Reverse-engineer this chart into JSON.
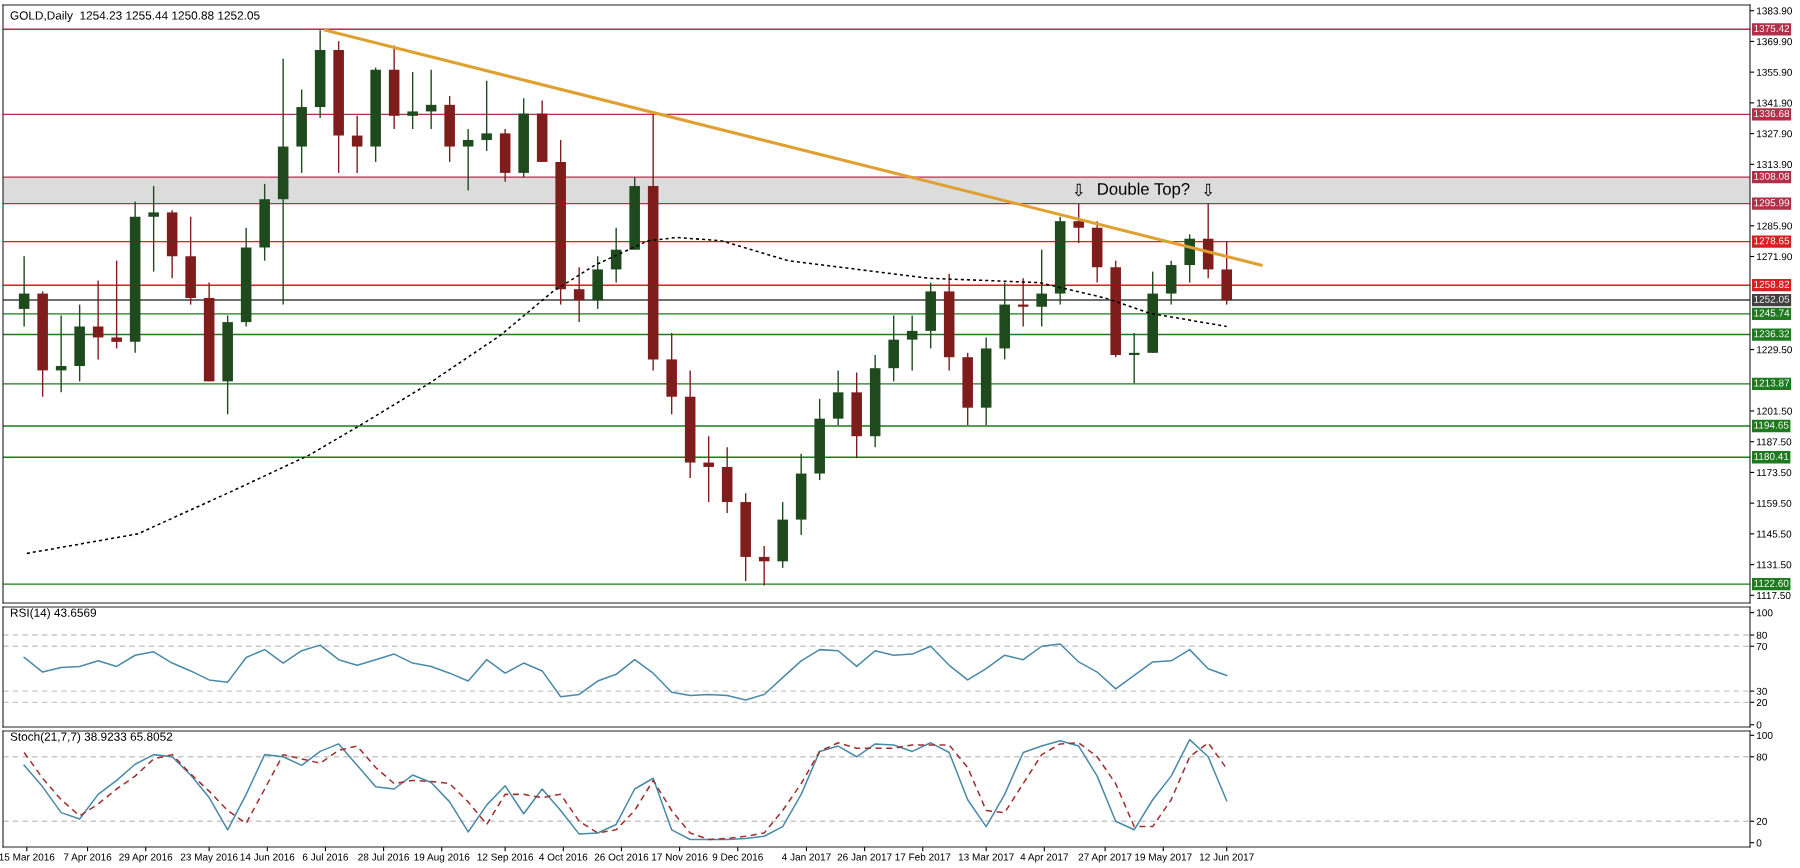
{
  "chart_data": [
    {
      "type": "candlestick",
      "title": "GOLD,Daily  1254.23 1255.44 1250.88 1252.05",
      "x": [
        "2016-03-14",
        "2016-03-21",
        "2016-03-28",
        "2016-04-04",
        "2016-04-11",
        "2016-04-18",
        "2016-04-25",
        "2016-05-02",
        "2016-05-09",
        "2016-05-16",
        "2016-05-23",
        "2016-05-30",
        "2016-06-06",
        "2016-06-13",
        "2016-06-20",
        "2016-06-27",
        "2016-07-04",
        "2016-07-11",
        "2016-07-18",
        "2016-07-25",
        "2016-08-01",
        "2016-08-08",
        "2016-08-15",
        "2016-08-22",
        "2016-08-29",
        "2016-09-05",
        "2016-09-12",
        "2016-09-19",
        "2016-09-26",
        "2016-10-03",
        "2016-10-10",
        "2016-10-17",
        "2016-10-24",
        "2016-10-31",
        "2016-11-07",
        "2016-11-14",
        "2016-11-21",
        "2016-11-28",
        "2016-12-05",
        "2016-12-12",
        "2016-12-19",
        "2016-12-26",
        "2017-01-02",
        "2017-01-09",
        "2017-01-16",
        "2017-01-23",
        "2017-01-30",
        "2017-02-06",
        "2017-02-13",
        "2017-02-20",
        "2017-02-27",
        "2017-03-06",
        "2017-03-13",
        "2017-03-20",
        "2017-03-27",
        "2017-04-03",
        "2017-04-10",
        "2017-04-17",
        "2017-04-24",
        "2017-05-01",
        "2017-05-08",
        "2017-05-15",
        "2017-05-22",
        "2017-05-29",
        "2017-06-05",
        "2017-06-12"
      ],
      "ohlc": [
        [
          1248,
          1272,
          1240,
          1255
        ],
        [
          1255,
          1256,
          1208,
          1220
        ],
        [
          1220,
          1245,
          1210,
          1222
        ],
        [
          1222,
          1250,
          1215,
          1240
        ],
        [
          1240,
          1261,
          1225,
          1235
        ],
        [
          1235,
          1270,
          1230,
          1233
        ],
        [
          1233,
          1297,
          1228,
          1290
        ],
        [
          1290,
          1304,
          1265,
          1292
        ],
        [
          1292,
          1293,
          1262,
          1272
        ],
        [
          1272,
          1290,
          1250,
          1253
        ],
        [
          1253,
          1260,
          1215,
          1215
        ],
        [
          1215,
          1245,
          1200,
          1242
        ],
        [
          1242,
          1285,
          1240,
          1276
        ],
        [
          1276,
          1305,
          1270,
          1298
        ],
        [
          1298,
          1362,
          1250,
          1322
        ],
        [
          1322,
          1348,
          1310,
          1340
        ],
        [
          1340,
          1375,
          1335,
          1366
        ],
        [
          1366,
          1370,
          1310,
          1327
        ],
        [
          1327,
          1336,
          1310,
          1322
        ],
        [
          1322,
          1358,
          1315,
          1357
        ],
        [
          1357,
          1368,
          1330,
          1336
        ],
        [
          1336,
          1356,
          1330,
          1338
        ],
        [
          1338,
          1357,
          1330,
          1341
        ],
        [
          1341,
          1345,
          1315,
          1322
        ],
        [
          1322,
          1330,
          1302,
          1325
        ],
        [
          1325,
          1352,
          1320,
          1328
        ],
        [
          1328,
          1330,
          1306,
          1310
        ],
        [
          1310,
          1344,
          1308,
          1337
        ],
        [
          1337,
          1343,
          1315,
          1315
        ],
        [
          1315,
          1325,
          1250,
          1257
        ],
        [
          1257,
          1267,
          1242,
          1252
        ],
        [
          1252,
          1272,
          1248,
          1266
        ],
        [
          1266,
          1285,
          1260,
          1275
        ],
        [
          1275,
          1308,
          1275,
          1304
        ],
        [
          1304,
          1337,
          1220,
          1225
        ],
        [
          1225,
          1237,
          1200,
          1208
        ],
        [
          1208,
          1220,
          1171,
          1178
        ],
        [
          1178,
          1190,
          1160,
          1176
        ],
        [
          1176,
          1185,
          1155,
          1160
        ],
        [
          1160,
          1164,
          1124,
          1135
        ],
        [
          1135,
          1140,
          1122,
          1133
        ],
        [
          1133,
          1160,
          1130,
          1152
        ],
        [
          1152,
          1182,
          1145,
          1173
        ],
        [
          1173,
          1207,
          1170,
          1198
        ],
        [
          1198,
          1220,
          1195,
          1210
        ],
        [
          1210,
          1219,
          1180,
          1190
        ],
        [
          1190,
          1227,
          1185,
          1221
        ],
        [
          1221,
          1245,
          1215,
          1234
        ],
        [
          1234,
          1245,
          1220,
          1238
        ],
        [
          1238,
          1260,
          1230,
          1256
        ],
        [
          1256,
          1264,
          1220,
          1226
        ],
        [
          1226,
          1228,
          1195,
          1203
        ],
        [
          1203,
          1235,
          1195,
          1230
        ],
        [
          1230,
          1260,
          1225,
          1250
        ],
        [
          1250,
          1262,
          1240,
          1249
        ],
        [
          1249,
          1275,
          1240,
          1255
        ],
        [
          1255,
          1290,
          1250,
          1288
        ],
        [
          1288,
          1296,
          1278,
          1285
        ],
        [
          1285,
          1288,
          1260,
          1267
        ],
        [
          1267,
          1270,
          1226,
          1227
        ],
        [
          1227,
          1237,
          1214,
          1228
        ],
        [
          1228,
          1265,
          1228,
          1255
        ],
        [
          1255,
          1270,
          1250,
          1268
        ],
        [
          1268,
          1282,
          1260,
          1280
        ],
        [
          1280,
          1296,
          1262,
          1266
        ],
        [
          1266,
          1279,
          1250,
          1252
        ]
      ],
      "colors": [
        "#1e4a1e",
        "#7f1d1d",
        "#1e4a1e",
        "#1e4a1e",
        "#7f1d1d",
        "#7f1d1d",
        "#1e4a1e",
        "#1e4a1e",
        "#7f1d1d",
        "#7f1d1d",
        "#7f1d1d",
        "#1e4a1e",
        "#1e4a1e",
        "#1e4a1e",
        "#1e4a1e",
        "#1e4a1e",
        "#1e4a1e",
        "#7f1d1d",
        "#7f1d1d",
        "#1e4a1e",
        "#7f1d1d",
        "#1e4a1e",
        "#1e4a1e",
        "#7f1d1d",
        "#1e4a1e",
        "#1e4a1e",
        "#7f1d1d",
        "#1e4a1e",
        "#7f1d1d",
        "#7f1d1d",
        "#7f1d1d",
        "#1e4a1e",
        "#1e4a1e",
        "#1e4a1e",
        "#7f1d1d",
        "#7f1d1d",
        "#7f1d1d",
        "#7f1d1d",
        "#7f1d1d",
        "#7f1d1d",
        "#7f1d1d",
        "#1e4a1e",
        "#1e4a1e",
        "#1e4a1e",
        "#1e4a1e",
        "#7f1d1d",
        "#1e4a1e",
        "#1e4a1e",
        "#1e4a1e",
        "#1e4a1e",
        "#7f1d1d",
        "#7f1d1d",
        "#1e4a1e",
        "#1e4a1e",
        "#7f1d1d",
        "#1e4a1e",
        "#1e4a1e",
        "#7f1d1d",
        "#7f1d1d",
        "#7f1d1d",
        "#1e4a1e",
        "#1e4a1e",
        "#1e4a1e",
        "#1e4a1e",
        "#7f1d1d",
        "#7f1d1d"
      ],
      "series": [
        {
          "type": "line",
          "color": "#000000",
          "line_style": "dotted",
          "x": [
            "2016-03-15",
            "2016-04-26",
            "2016-06-02",
            "2016-06-30",
            "2016-07-20",
            "2016-08-14",
            "2016-09-10",
            "2016-09-30",
            "2016-10-16",
            "2016-11-05",
            "2016-11-16",
            "2016-12-03",
            "2016-12-28",
            "2017-02-19",
            "2017-04-02",
            "2017-04-27",
            "2017-05-14",
            "2017-06-12"
          ],
          "values": [
            1136.6,
            1145.5,
            1165.7,
            1181.5,
            1195.6,
            1213.9,
            1235.8,
            1255.9,
            1268,
            1279,
            1280.6,
            1279,
            1270,
            1262,
            1260,
            1253,
            1246,
            1240
          ]
        },
        {
          "type": "line",
          "color": "#e0a030",
          "line_style": "solid",
          "x": [
            "2016-07-06",
            "2017-06-25"
          ],
          "values": [
            1375,
            1268
          ]
        }
      ],
      "xlim": [
        "2016-03-06",
        "2017-12-27"
      ],
      "ylim": [
        1114,
        1386.5
      ],
      "yticks": [
        {
          "value": 1383.9,
          "label": "1383.90"
        },
        {
          "value": 1369.9,
          "label": "1369.90"
        },
        {
          "value": 1355.9,
          "label": "1355.90"
        },
        {
          "value": 1341.9,
          "label": "1341.90"
        },
        {
          "value": 1327.9,
          "label": "1327.90"
        },
        {
          "value": 1313.9,
          "label": "1313.90"
        },
        {
          "value": 1285.9,
          "label": "1285.90"
        },
        {
          "value": 1271.9,
          "label": "1271.90"
        },
        {
          "value": 1229.5,
          "label": "1229.50"
        },
        {
          "value": 1201.5,
          "label": "1201.50"
        },
        {
          "value": 1187.5,
          "label": "1187.50"
        },
        {
          "value": 1173.5,
          "label": "1173.50"
        },
        {
          "value": 1159.5,
          "label": "1159.50"
        },
        {
          "value": 1145.5,
          "label": "1145.50"
        },
        {
          "value": 1131.5,
          "label": "1131.50"
        },
        {
          "value": 1117.5,
          "label": "1117.50"
        }
      ],
      "tick_labels": "y",
      "ref_lines": [
        {
          "axis": "y",
          "value": 1375.42,
          "label": "1375.42",
          "color": "#b0304a"
        },
        {
          "axis": "y",
          "value": 1336.68,
          "label": "1336.68",
          "color": "#b0304a"
        },
        {
          "axis": "y",
          "value": 1308.08,
          "label": "1308.08",
          "color": "#b0304a"
        },
        {
          "axis": "y",
          "value": 1295.99,
          "label": "1295.99",
          "color": "#b0304a"
        },
        {
          "axis": "y",
          "value": 1278.65,
          "label": "1278.65",
          "color": "#d42020"
        },
        {
          "axis": "y",
          "value": 1258.82,
          "label": "1258.82",
          "color": "#d42020"
        },
        {
          "axis": "y",
          "value": 1252.05,
          "label": "1252.05",
          "color": "#404040"
        },
        {
          "axis": "y",
          "value": 1245.74,
          "label": "1245.74",
          "color": "#1e7a1e"
        },
        {
          "axis": "y",
          "value": 1236.32,
          "label": "1236.32",
          "color": "#1e7a1e"
        },
        {
          "axis": "y",
          "value": 1213.87,
          "label": "1213.87",
          "color": "#1e7a1e"
        },
        {
          "axis": "y",
          "value": 1194.65,
          "label": "1194.65",
          "color": "#1e7a1e"
        },
        {
          "axis": "y",
          "value": 1180.41,
          "label": "1180.41",
          "color": "#1e7a1e"
        },
        {
          "axis": "y",
          "value": 1122.6,
          "label": "1122.60",
          "color": "#1e7a1e"
        }
      ],
      "bands": [
        {
          "axis": "y",
          "from": 1295.99,
          "to": 1308.08,
          "label": "Double Top?",
          "color": "#dcdcdc"
        }
      ],
      "annotations": [
        {
          "text": "⇩",
          "x": "2017-04-17",
          "y": 1296
        },
        {
          "text": "⇩",
          "x": "2017-06-05",
          "y": 1296
        }
      ]
    },
    {
      "type": "line",
      "title": "RSI(14) 43.6569",
      "x": [
        "2016-03-14",
        "2016-03-21",
        "2016-03-28",
        "2016-04-04",
        "2016-04-11",
        "2016-04-18",
        "2016-04-25",
        "2016-05-02",
        "2016-05-09",
        "2016-05-16",
        "2016-05-23",
        "2016-05-30",
        "2016-06-06",
        "2016-06-13",
        "2016-06-20",
        "2016-06-27",
        "2016-07-04",
        "2016-07-11",
        "2016-07-18",
        "2016-07-25",
        "2016-08-01",
        "2016-08-08",
        "2016-08-15",
        "2016-08-22",
        "2016-08-29",
        "2016-09-05",
        "2016-09-12",
        "2016-09-19",
        "2016-09-26",
        "2016-10-03",
        "2016-10-10",
        "2016-10-17",
        "2016-10-24",
        "2016-10-31",
        "2016-11-07",
        "2016-11-14",
        "2016-11-21",
        "2016-11-28",
        "2016-12-05",
        "2016-12-12",
        "2016-12-19",
        "2016-12-26",
        "2017-01-02",
        "2017-01-09",
        "2017-01-16",
        "2017-01-23",
        "2017-01-30",
        "2017-02-06",
        "2017-02-13",
        "2017-02-20",
        "2017-02-27",
        "2017-03-06",
        "2017-03-13",
        "2017-03-20",
        "2017-03-27",
        "2017-04-03",
        "2017-04-10",
        "2017-04-17",
        "2017-04-24",
        "2017-05-01",
        "2017-05-08",
        "2017-05-15",
        "2017-05-22",
        "2017-05-29",
        "2017-06-05",
        "2017-06-12"
      ],
      "series": [
        {
          "color": "#4a8aa8",
          "line_style": "solid",
          "values": [
            60,
            47,
            51,
            52,
            57,
            52,
            62,
            65,
            55,
            48,
            40,
            38,
            60,
            67,
            55,
            66,
            71,
            58,
            53,
            58,
            63,
            55,
            52,
            46,
            39,
            58,
            46,
            55,
            48,
            25,
            27,
            39,
            45,
            58,
            46,
            29,
            26,
            27,
            26,
            22,
            27,
            42,
            57,
            67,
            66,
            52,
            66,
            62,
            63,
            70,
            53,
            40,
            50,
            62,
            58,
            70,
            72,
            56,
            47,
            32,
            44,
            56,
            57,
            67,
            50,
            44
          ]
        }
      ],
      "xlim": [
        "2016-03-06",
        "2017-12-27"
      ],
      "ylim": [
        -2,
        105
      ],
      "yticks": [
        0,
        20,
        30,
        70,
        80,
        100
      ],
      "tick_labels": "y",
      "ref_lines": [
        {
          "axis": "y",
          "value": 80,
          "label": null,
          "color": "#c8c8c8",
          "line_style": "dashed"
        },
        {
          "axis": "y",
          "value": 70,
          "label": null,
          "color": "#c8c8c8",
          "line_style": "dashed"
        },
        {
          "axis": "y",
          "value": 30,
          "label": null,
          "color": "#c8c8c8",
          "line_style": "dashed"
        },
        {
          "axis": "y",
          "value": 20,
          "label": null,
          "color": "#c8c8c8",
          "line_style": "dashed"
        }
      ]
    },
    {
      "type": "line",
      "title": "Stoch(21,7,7) 38.9233 65.8052",
      "x": [
        "2016-03-14",
        "2016-03-21",
        "2016-03-28",
        "2016-04-04",
        "2016-04-11",
        "2016-04-18",
        "2016-04-25",
        "2016-05-02",
        "2016-05-09",
        "2016-05-16",
        "2016-05-23",
        "2016-05-30",
        "2016-06-06",
        "2016-06-13",
        "2016-06-20",
        "2016-06-27",
        "2016-07-04",
        "2016-07-11",
        "2016-07-18",
        "2016-07-25",
        "2016-08-01",
        "2016-08-08",
        "2016-08-15",
        "2016-08-22",
        "2016-08-29",
        "2016-09-05",
        "2016-09-12",
        "2016-09-19",
        "2016-09-26",
        "2016-10-03",
        "2016-10-10",
        "2016-10-17",
        "2016-10-24",
        "2016-10-31",
        "2016-11-07",
        "2016-11-14",
        "2016-11-21",
        "2016-11-28",
        "2016-12-05",
        "2016-12-12",
        "2016-12-19",
        "2016-12-26",
        "2017-01-02",
        "2017-01-09",
        "2017-01-16",
        "2017-01-23",
        "2017-01-30",
        "2017-02-06",
        "2017-02-13",
        "2017-02-20",
        "2017-02-27",
        "2017-03-06",
        "2017-03-13",
        "2017-03-20",
        "2017-03-27",
        "2017-04-03",
        "2017-04-10",
        "2017-04-17",
        "2017-04-24",
        "2017-05-01",
        "2017-05-08",
        "2017-05-15",
        "2017-05-22",
        "2017-05-29",
        "2017-06-05",
        "2017-06-12"
      ],
      "series": [
        {
          "color": "#4a8aa8",
          "line_style": "solid",
          "values": [
            72,
            52,
            28,
            22,
            45,
            58,
            73,
            82,
            80,
            63,
            42,
            12,
            45,
            82,
            80,
            72,
            85,
            92,
            72,
            52,
            50,
            63,
            56,
            38,
            10,
            35,
            53,
            27,
            50,
            30,
            8,
            9,
            17,
            50,
            60,
            12,
            3,
            3,
            3,
            4,
            6,
            15,
            45,
            85,
            90,
            80,
            92,
            91,
            85,
            93,
            84,
            40,
            15,
            45,
            84,
            90,
            95,
            90,
            62,
            20,
            12,
            40,
            62,
            96,
            80,
            39
          ]
        },
        {
          "color": "#a03030",
          "line_style": "dashed",
          "values": [
            84,
            60,
            40,
            25,
            36,
            50,
            62,
            78,
            82,
            64,
            48,
            30,
            18,
            50,
            82,
            78,
            74,
            86,
            90,
            70,
            55,
            58,
            57,
            55,
            38,
            17,
            45,
            45,
            42,
            45,
            20,
            9,
            12,
            30,
            58,
            30,
            9,
            3,
            4,
            6,
            9,
            30,
            55,
            85,
            93,
            88,
            88,
            88,
            91,
            91,
            91,
            70,
            30,
            28,
            55,
            82,
            92,
            93,
            80,
            55,
            15,
            15,
            40,
            80,
            93,
            69
          ]
        }
      ],
      "xlim": [
        "2016-03-06",
        "2017-12-27"
      ],
      "xticks": [
        {
          "value": "2016-03-15",
          "label": "15 Mar 2016"
        },
        {
          "value": "2016-04-07",
          "label": "7 Apr 2016"
        },
        {
          "value": "2016-04-29",
          "label": "29 Apr 2016"
        },
        {
          "value": "2016-05-23",
          "label": "23 May 2016"
        },
        {
          "value": "2016-06-14",
          "label": "14 Jun 2016"
        },
        {
          "value": "2016-07-06",
          "label": "6 Jul 2016"
        },
        {
          "value": "2016-07-28",
          "label": "28 Jul 2016"
        },
        {
          "value": "2016-08-19",
          "label": "19 Aug 2016"
        },
        {
          "value": "2016-09-12",
          "label": "12 Sep 2016"
        },
        {
          "value": "2016-10-04",
          "label": "4 Oct 2016"
        },
        {
          "value": "2016-10-26",
          "label": "26 Oct 2016"
        },
        {
          "value": "2016-11-17",
          "label": "17 Nov 2016"
        },
        {
          "value": "2016-12-09",
          "label": "9 Dec 2016"
        },
        {
          "value": "2017-01-04",
          "label": "4 Jan 2017"
        },
        {
          "value": "2017-01-26",
          "label": "26 Jan 2017"
        },
        {
          "value": "2017-02-17",
          "label": "17 Feb 2017"
        },
        {
          "value": "2017-03-13",
          "label": "13 Mar 2017"
        },
        {
          "value": "2017-04-04",
          "label": "4 Apr 2017"
        },
        {
          "value": "2017-04-27",
          "label": "27 Apr 2017"
        },
        {
          "value": "2017-05-19",
          "label": "19 May 2017"
        },
        {
          "value": "2017-06-12",
          "label": "12 Jun 2017"
        }
      ],
      "ylim": [
        -4,
        104
      ],
      "yticks": [
        0,
        20,
        80,
        100
      ],
      "ref_lines": [
        {
          "axis": "y",
          "value": 80,
          "label": null,
          "color": "#c8c8c8",
          "line_style": "dashed"
        },
        {
          "axis": "y",
          "value": 20,
          "label": null,
          "color": "#c8c8c8",
          "line_style": "dashed"
        }
      ]
    }
  ]
}
